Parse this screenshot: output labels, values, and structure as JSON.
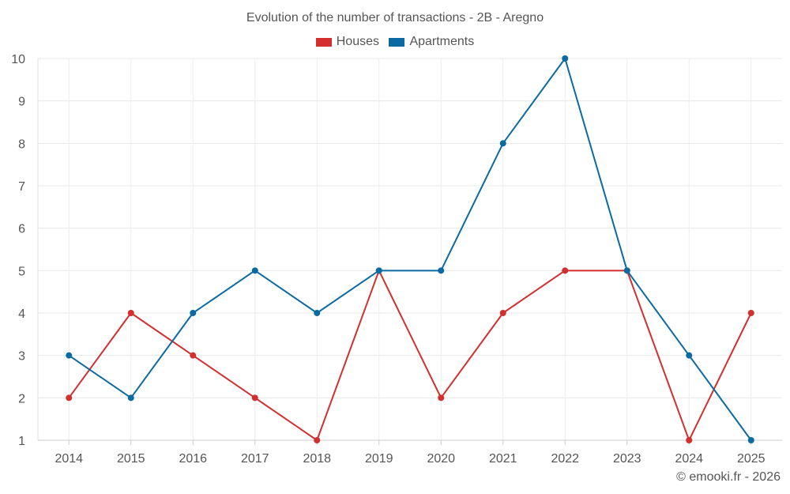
{
  "chart_data": {
    "type": "line",
    "title": "Evolution of the number of transactions - 2B - Aregno",
    "categories": [
      "2014",
      "2015",
      "2016",
      "2017",
      "2018",
      "2019",
      "2020",
      "2021",
      "2022",
      "2023",
      "2024",
      "2025"
    ],
    "series": [
      {
        "name": "Houses",
        "color": "#d32f2f",
        "values": [
          2,
          4,
          3,
          2,
          1,
          5,
          2,
          4,
          5,
          5,
          1,
          4
        ]
      },
      {
        "name": "Apartments",
        "color": "#0b6aa2",
        "values": [
          3,
          2,
          4,
          5,
          4,
          5,
          5,
          8,
          10,
          5,
          3,
          1
        ]
      }
    ],
    "yticks": [
      1,
      2,
      3,
      4,
      5,
      6,
      7,
      8,
      9,
      10
    ],
    "ylim": [
      1,
      10
    ],
    "grid": true,
    "legend_position": "top-center"
  },
  "credit": "© emooki.fr - 2026"
}
